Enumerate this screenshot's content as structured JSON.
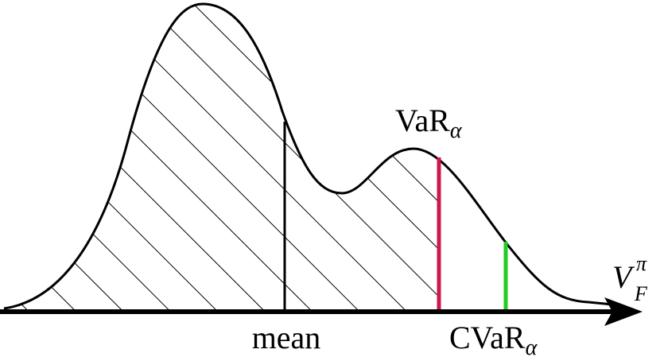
{
  "labels": {
    "var": {
      "main": "VaR",
      "sub": "α"
    },
    "mean": "mean",
    "cvar": {
      "main": "CVaR",
      "sub": "α"
    },
    "axis": {
      "main": "V",
      "sub": "F",
      "sup": "π"
    }
  }
}
